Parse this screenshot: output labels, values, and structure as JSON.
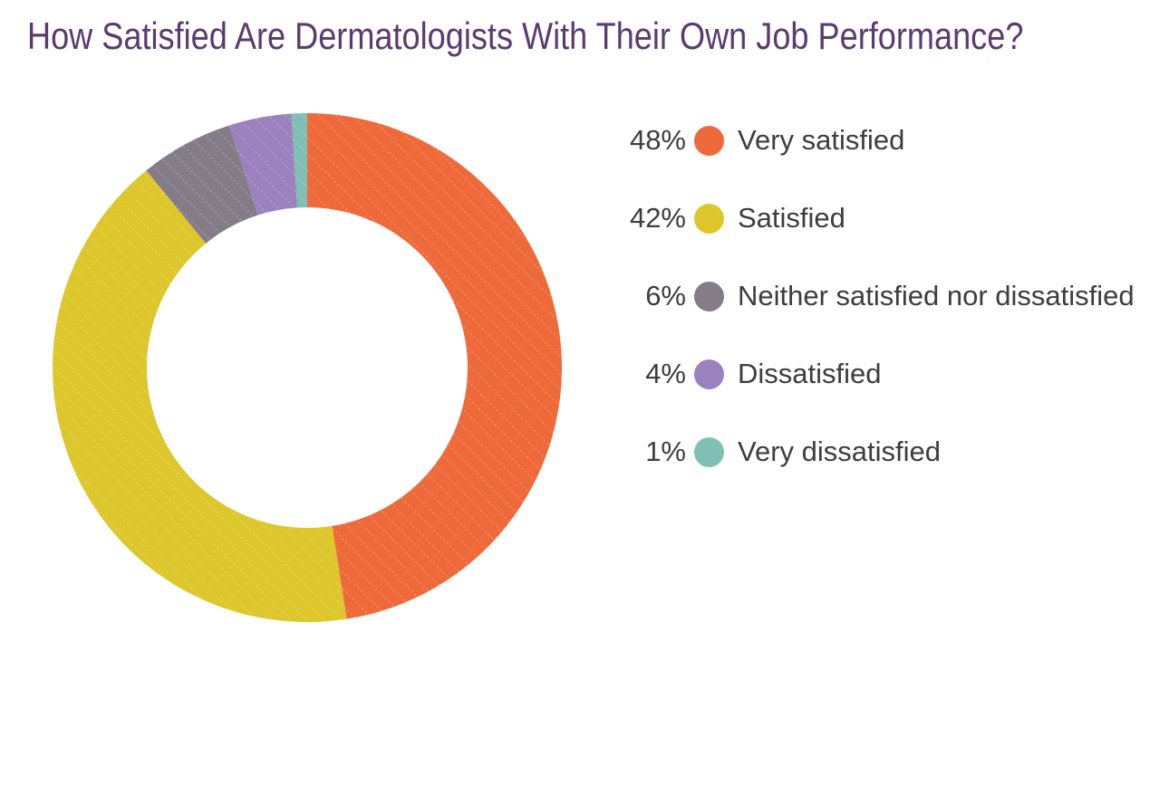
{
  "page": {
    "background": "#ffffff"
  },
  "title": {
    "text": "How Satisfied Are Dermatologists With Their Own Job Performance?",
    "color": "#5B3A70"
  },
  "text_color": "#3D3D3F",
  "chart_data": {
    "type": "pie",
    "subtype": "donut",
    "title": "How Satisfied Are Dermatologists With Their Own Job Performance?",
    "start_angle_deg": 0,
    "direction": "clockwise",
    "inner_radius_ratio": 0.63,
    "legend_position": "right",
    "value_suffix": "%",
    "series": [
      {
        "label": "Very satisfied",
        "value_pct": 48,
        "display_value": "48%",
        "color": "#EF6A3B"
      },
      {
        "label": "Satisfied",
        "value_pct": 42,
        "display_value": "42%",
        "color": "#DDC72C"
      },
      {
        "label": "Neither satisfied nor dissatisfied",
        "value_pct": 6,
        "display_value": "6%",
        "color": "#847D88"
      },
      {
        "label": "Dissatisfied",
        "value_pct": 4,
        "display_value": "4%",
        "color": "#9B81BE"
      },
      {
        "label": "Very dissatisfied",
        "value_pct": 1,
        "display_value": "1%",
        "color": "#80BFB4"
      }
    ]
  }
}
